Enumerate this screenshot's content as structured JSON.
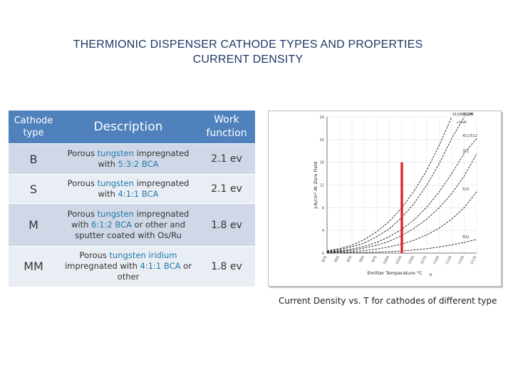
{
  "title": {
    "line1": "THERMIONIC DISPENSER CATHODE TYPES AND PROPERTIES",
    "line2": "CURRENT DENSITY"
  },
  "table": {
    "headers": {
      "type": "Cathode type",
      "description": "Description",
      "work_function": "Work function"
    },
    "rows": [
      {
        "type": "B",
        "desc_pre": "Porous ",
        "desc_hl1": "tungsten",
        "desc_mid": " impregnated with ",
        "desc_hl2": "5:3:2 BCA",
        "desc_post": "",
        "work_function": "2.1 ev"
      },
      {
        "type": "S",
        "desc_pre": "Porous ",
        "desc_hl1": "tungsten",
        "desc_mid": " impregnated with ",
        "desc_hl2": "4:1:1 BCA",
        "desc_post": "",
        "work_function": "2.1 ev"
      },
      {
        "type": "M",
        "desc_pre": "Porous ",
        "desc_hl1": "tungsten",
        "desc_mid": " impregnated with ",
        "desc_hl2": "6:1:2 BCA",
        "desc_post": " or other and sputter coated with Os/Ru",
        "work_function": "1.8 ev"
      },
      {
        "type": "MM",
        "desc_pre": "Porous ",
        "desc_hl1": "tungsten iridium",
        "desc_mid": " impregnated with ",
        "desc_hl2": "4:1:1 BCA",
        "desc_post": " or other",
        "work_function": "1.8 ev"
      }
    ]
  },
  "chart_data": {
    "type": "line",
    "xlabel": "Emitter Temperature °C",
    "xlabel_sub": "B",
    "ylabel": "J-A/cm² At Zero Field",
    "x_ticks": [
      "875",
      "900",
      "925",
      "950",
      "975",
      "1000",
      "1025",
      "1050",
      "1075",
      "1100",
      "1125",
      "1150",
      "1175"
    ],
    "y_ticks": [
      "0",
      "4",
      "8",
      "12",
      "16",
      "20",
      "24"
    ],
    "xlim": [
      875,
      1175
    ],
    "ylim": [
      0,
      24
    ],
    "series": [
      {
        "name": "411M/512M",
        "x": [
          875,
          900,
          925,
          950,
          975,
          1000,
          1025,
          1050,
          1075,
          1100,
          1125
        ],
        "y": [
          0.4,
          0.8,
          1.4,
          2.4,
          3.8,
          5.6,
          8.0,
          11.0,
          14.6,
          19.0,
          24.0
        ]
      },
      {
        "name": "311M",
        "x": [
          875,
          900,
          925,
          950,
          975,
          1000,
          1025,
          1050,
          1075,
          1100,
          1125,
          1150
        ],
        "y": [
          0.3,
          0.6,
          1.1,
          1.8,
          2.9,
          4.3,
          6.3,
          8.8,
          12.0,
          15.8,
          20.2,
          24.0
        ]
      },
      {
        "name": "411/512",
        "x": [
          875,
          900,
          925,
          950,
          975,
          1000,
          1025,
          1050,
          1075,
          1100,
          1125,
          1150,
          1175
        ],
        "y": [
          0.2,
          0.4,
          0.7,
          1.2,
          1.9,
          2.9,
          4.2,
          5.9,
          8.1,
          10.8,
          14.0,
          17.6,
          20.2
        ]
      },
      {
        "name": "311",
        "x": [
          875,
          900,
          925,
          950,
          975,
          1000,
          1025,
          1050,
          1075,
          1100,
          1125,
          1150,
          1175
        ],
        "y": [
          0.15,
          0.3,
          0.5,
          0.9,
          1.4,
          2.1,
          3.1,
          4.4,
          6.0,
          8.0,
          10.5,
          13.6,
          17.5
        ]
      },
      {
        "name": "532",
        "x": [
          875,
          900,
          925,
          950,
          975,
          1000,
          1025,
          1050,
          1075,
          1100,
          1125,
          1150,
          1175
        ],
        "y": [
          0.08,
          0.15,
          0.27,
          0.45,
          0.72,
          1.1,
          1.6,
          2.3,
          3.2,
          4.4,
          6.0,
          8.0,
          10.8
        ]
      },
      {
        "name": "502",
        "x": [
          875,
          900,
          925,
          950,
          975,
          1000,
          1025,
          1050,
          1075,
          1100,
          1125,
          1150,
          1175
        ],
        "y": [
          0.02,
          0.04,
          0.07,
          0.11,
          0.17,
          0.26,
          0.38,
          0.55,
          0.78,
          1.08,
          1.45,
          1.9,
          2.4
        ]
      }
    ],
    "extra_label": "+5%M",
    "marker": {
      "x": 1025,
      "y0": 0,
      "y1": 16,
      "color": "#d92b2b"
    },
    "line_color": "#222222",
    "grid": true
  },
  "caption": "Current Density vs. T for cathodes of different type"
}
